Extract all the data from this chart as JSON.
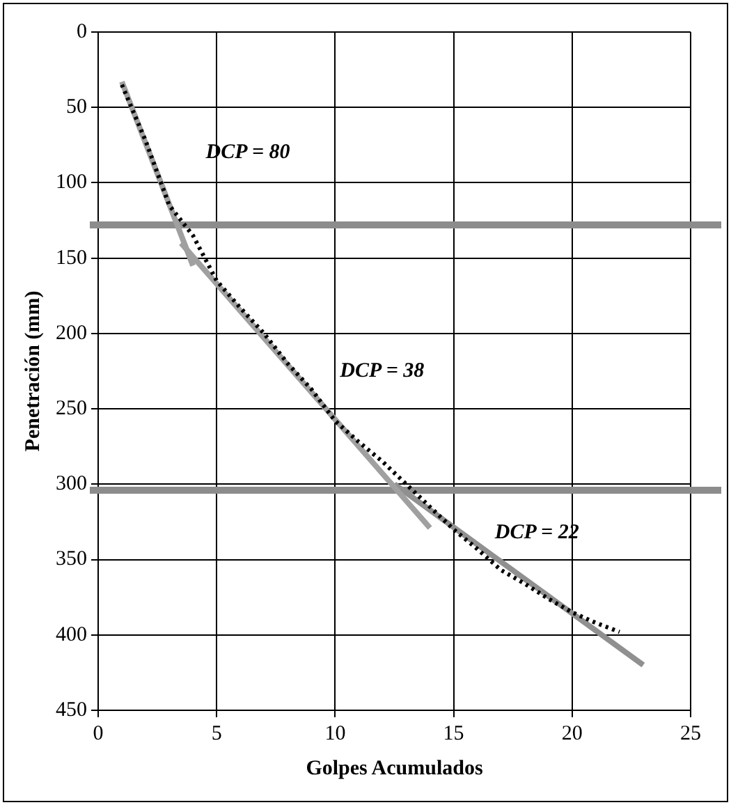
{
  "chart_data": {
    "type": "line",
    "xlabel": "Golpes Acumulados",
    "ylabel": "Penetración (mm)",
    "xlim": [
      0,
      25
    ],
    "xticks": [
      0,
      5,
      10,
      15,
      20,
      25
    ],
    "ylim": [
      450,
      0
    ],
    "yticks": [
      0,
      50,
      100,
      150,
      200,
      250,
      300,
      350,
      400,
      450
    ],
    "grid": true,
    "legend": false,
    "series": [
      {
        "color": "#000000",
        "line_style": "dotted",
        "marker": "none",
        "x": [
          1,
          2,
          3,
          4,
          5,
          6,
          7,
          8,
          9,
          10,
          11,
          12,
          13,
          14,
          15,
          16,
          17,
          18,
          19,
          20,
          21,
          22
        ],
        "values": [
          35,
          72,
          115,
          135,
          165,
          183,
          200,
          220,
          237,
          258,
          272,
          285,
          300,
          315,
          330,
          343,
          357,
          366,
          376,
          385,
          392,
          398
        ]
      },
      {
        "color": "#a0a0a0",
        "line_style": "solid",
        "marker": "none",
        "x": [
          1,
          4
        ],
        "values": [
          33,
          155
        ]
      },
      {
        "color": "#a0a0a0",
        "line_style": "solid",
        "marker": "none",
        "x": [
          3.5,
          14
        ],
        "values": [
          140,
          329
        ]
      },
      {
        "color": "#909090",
        "line_style": "solid",
        "marker": "none",
        "x": [
          12.5,
          23
        ],
        "values": [
          300,
          420
        ]
      }
    ],
    "ref_lines": [
      {
        "axis": "y",
        "value": 128,
        "color": "#8c8c8c"
      },
      {
        "axis": "y",
        "value": 304,
        "color": "#8c8c8c"
      }
    ],
    "annotations": [
      "DCP = 80",
      "DCP = 38",
      "DCP = 22"
    ]
  }
}
